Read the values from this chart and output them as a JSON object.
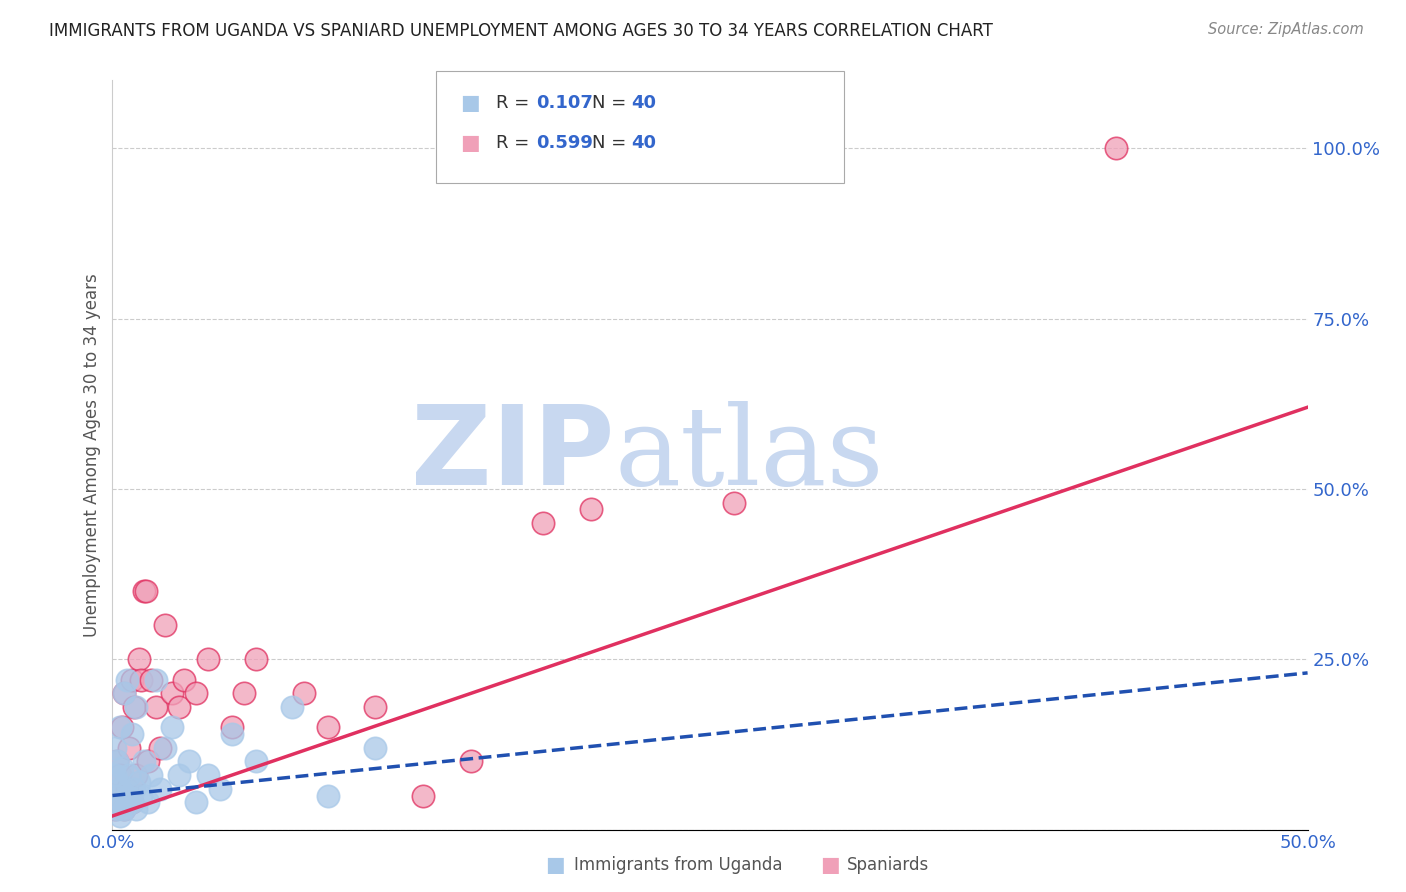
{
  "title": "IMMIGRANTS FROM UGANDA VS SPANIARD UNEMPLOYMENT AMONG AGES 30 TO 34 YEARS CORRELATION CHART",
  "source": "Source: ZipAtlas.com",
  "ylabel_left": "Unemployment Among Ages 30 to 34 years",
  "xlim": [
    0.0,
    0.5
  ],
  "ylim": [
    0.0,
    1.1
  ],
  "x_ticks": [
    0.0,
    0.1,
    0.2,
    0.3,
    0.4,
    0.5
  ],
  "y_ticks_right": [
    0.0,
    0.25,
    0.5,
    0.75,
    1.0
  ],
  "R_uganda": 0.107,
  "N_uganda": 40,
  "R_spaniard": 0.599,
  "N_spaniard": 40,
  "color_uganda": "#a8c8e8",
  "color_spaniard": "#f0a0b8",
  "color_uganda_line": "#2050b0",
  "color_spaniard_line": "#e03060",
  "watermark_zip": "#c8d8f0",
  "watermark_atlas": "#c8d8f0",
  "uganda_scatter_x": [
    0.001,
    0.001,
    0.001,
    0.002,
    0.002,
    0.002,
    0.003,
    0.003,
    0.003,
    0.004,
    0.004,
    0.005,
    0.005,
    0.006,
    0.006,
    0.007,
    0.008,
    0.008,
    0.009,
    0.01,
    0.01,
    0.011,
    0.012,
    0.013,
    0.015,
    0.016,
    0.018,
    0.02,
    0.022,
    0.025,
    0.028,
    0.032,
    0.035,
    0.04,
    0.045,
    0.05,
    0.06,
    0.075,
    0.09,
    0.11
  ],
  "uganda_scatter_y": [
    0.05,
    0.08,
    0.12,
    0.03,
    0.07,
    0.1,
    0.02,
    0.06,
    0.15,
    0.04,
    0.09,
    0.03,
    0.2,
    0.05,
    0.22,
    0.08,
    0.04,
    0.14,
    0.06,
    0.03,
    0.18,
    0.07,
    0.05,
    0.1,
    0.04,
    0.08,
    0.22,
    0.06,
    0.12,
    0.15,
    0.08,
    0.1,
    0.04,
    0.08,
    0.06,
    0.14,
    0.1,
    0.18,
    0.05,
    0.12
  ],
  "spaniard_scatter_x": [
    0.001,
    0.002,
    0.002,
    0.003,
    0.003,
    0.004,
    0.005,
    0.005,
    0.006,
    0.007,
    0.008,
    0.008,
    0.009,
    0.01,
    0.011,
    0.012,
    0.013,
    0.014,
    0.015,
    0.016,
    0.018,
    0.02,
    0.022,
    0.025,
    0.028,
    0.03,
    0.035,
    0.04,
    0.05,
    0.055,
    0.06,
    0.08,
    0.09,
    0.11,
    0.13,
    0.15,
    0.18,
    0.2,
    0.26,
    0.42
  ],
  "spaniard_scatter_y": [
    0.03,
    0.05,
    0.1,
    0.04,
    0.08,
    0.15,
    0.03,
    0.2,
    0.06,
    0.12,
    0.04,
    0.22,
    0.18,
    0.08,
    0.25,
    0.22,
    0.35,
    0.35,
    0.1,
    0.22,
    0.18,
    0.12,
    0.3,
    0.2,
    0.18,
    0.22,
    0.2,
    0.25,
    0.15,
    0.2,
    0.25,
    0.2,
    0.15,
    0.18,
    0.05,
    0.1,
    0.45,
    0.47,
    0.48,
    1.0
  ],
  "spaniard_line_x": [
    0.0,
    0.5
  ],
  "spaniard_line_y": [
    0.02,
    0.62
  ],
  "uganda_line_x": [
    0.0,
    0.5
  ],
  "uganda_line_y": [
    0.05,
    0.23
  ]
}
